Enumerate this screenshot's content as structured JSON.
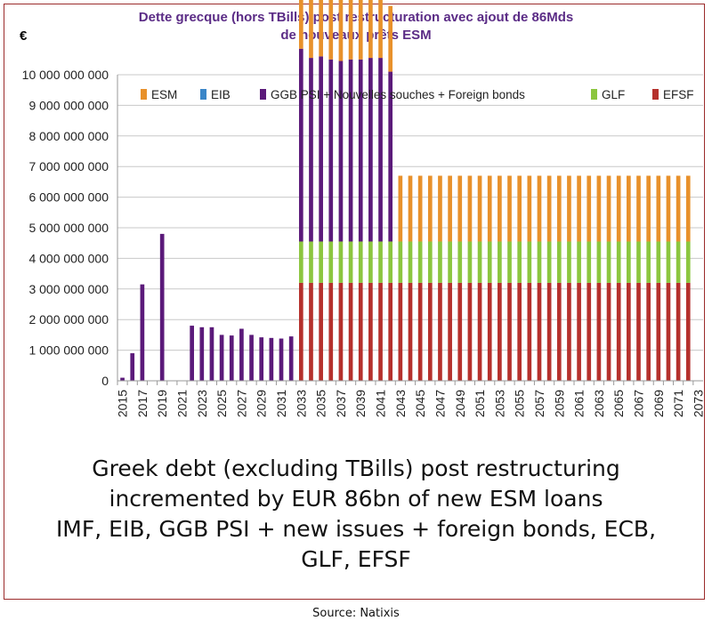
{
  "header": {
    "title_line1": "Dette grecque (hors TBills) post restructuration avec ajout de 86Mds",
    "title_line2": "de nouveaux prêts ESM",
    "unit": "€"
  },
  "caption": {
    "line1": "Greek debt (excluding TBills) post restructuring",
    "line2": "incremented by EUR 86bn of new ESM loans",
    "line3": "IMF, EIB, GGB PSI + new issues + foreign bonds, ECB,",
    "line4": "GLF, EFSF"
  },
  "source": "Source: Natixis",
  "colors": {
    "ESM": "#e8912b",
    "EIB": "#3a86c8",
    "GGB": "#5b1a7a",
    "GLF": "#8cc63f",
    "EFSF": "#b5302c",
    "frame": "#9b2b2b",
    "title": "#5b2c86"
  },
  "chart_data": {
    "type": "bar",
    "stacked": true,
    "x_start": 2015,
    "x_end": 2073,
    "x_tick_labels": [
      "2015",
      "2017",
      "2019",
      "2021",
      "2023",
      "2025",
      "2027",
      "2029",
      "2031",
      "2033",
      "2035",
      "2037",
      "2039",
      "2041",
      "2043",
      "2045",
      "2047",
      "2049",
      "2051",
      "2053",
      "2055",
      "2057",
      "2059",
      "2061",
      "2063",
      "2065",
      "2067",
      "2069",
      "2071",
      "2073"
    ],
    "y_ticks": [
      "0",
      "1 000 000 000",
      "2 000 000 000",
      "3 000 000 000",
      "4 000 000 000",
      "5 000 000 000",
      "6 000 000 000",
      "7 000 000 000",
      "8 000 000 000",
      "9 000 000 000",
      "10 000 000 000"
    ],
    "ylim": [
      0,
      10000000000
    ],
    "legend_position": "top",
    "legend": [
      "ESM",
      "EIB",
      "GGB PSI + Nouvelles souches + Foreign bonds",
      "GLF",
      "EFSF"
    ],
    "series": [
      {
        "name": "GGB",
        "points": [
          [
            2015,
            100000000
          ],
          [
            2016,
            900000000
          ],
          [
            2017,
            3150000000
          ],
          [
            2019,
            4800000000
          ],
          [
            2022,
            1800000000
          ],
          [
            2023,
            1750000000
          ],
          [
            2024,
            1750000000
          ],
          [
            2025,
            1500000000
          ],
          [
            2026,
            1480000000
          ],
          [
            2027,
            1700000000
          ],
          [
            2028,
            1500000000
          ],
          [
            2029,
            1420000000
          ],
          [
            2030,
            1400000000
          ],
          [
            2031,
            1380000000
          ],
          [
            2032,
            1450000000
          ],
          [
            2033,
            6300000000
          ],
          [
            2034,
            6000000000
          ],
          [
            2035,
            6050000000
          ],
          [
            2036,
            5950000000
          ],
          [
            2037,
            5900000000
          ],
          [
            2038,
            5950000000
          ],
          [
            2039,
            5950000000
          ],
          [
            2040,
            6000000000
          ],
          [
            2041,
            6000000000
          ],
          [
            2042,
            5550000000
          ]
        ]
      },
      {
        "name": "EFSF",
        "from": 2033,
        "to": 2072,
        "value": 3200000000
      },
      {
        "name": "GLF",
        "from": 2033,
        "to": 2072,
        "value": 1350000000
      },
      {
        "name": "ESM",
        "points": [
          [
            2033,
            2150000000
          ],
          [
            2034,
            2150000000
          ],
          [
            2035,
            2150000000
          ],
          [
            2036,
            2150000000
          ],
          [
            2037,
            2150000000
          ],
          [
            2038,
            2150000000
          ],
          [
            2039,
            2150000000
          ],
          [
            2040,
            2150000000
          ],
          [
            2041,
            2150000000
          ],
          [
            2042,
            2150000000
          ]
        ],
        "from_2043_total": 6700000000,
        "to": 2072
      }
    ]
  }
}
